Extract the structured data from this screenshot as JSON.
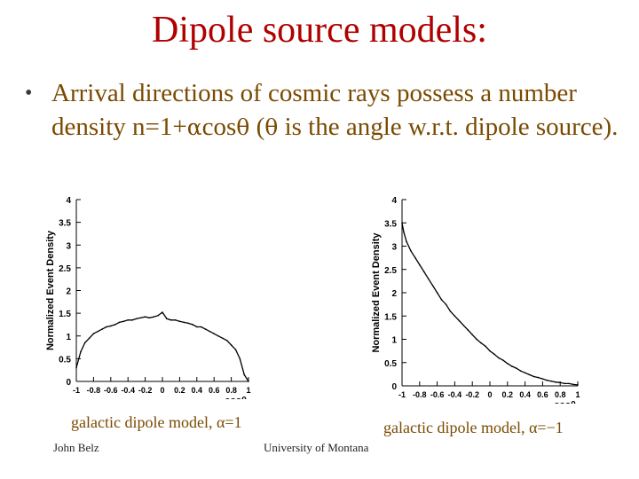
{
  "slide": {
    "title": "Dipole source models:",
    "bullet_part1": "Arrival directions of cosmic rays possess a number density n=1+",
    "alpha": "α",
    "bullet_part2": "cos",
    "theta": "θ",
    "bullet_part3": " (",
    "bullet_part4": " is the angle w.r.t. dipole source).",
    "caption_left": "galactic dipole model, α=1",
    "caption_right": "galactic dipole model, α=−1",
    "footer_left": "John Belz",
    "footer_center": "University of Montana"
  },
  "chart_data": [
    {
      "type": "line",
      "ylabel": "Normalized Event Density",
      "xlabel": "cosθ",
      "xlim": [
        -1,
        1
      ],
      "ylim": [
        0,
        4
      ],
      "x_ticks": [
        "-1",
        "-0.8",
        "-0.6",
        "-0.4",
        "-0.2",
        "0",
        "0.2",
        "0.4",
        "0.6",
        "0.8",
        "1"
      ],
      "y_ticks": [
        "0",
        "0.5",
        "1",
        "1.5",
        "2",
        "2.5",
        "3",
        "3.5",
        "4"
      ],
      "x": [
        -1.0,
        -0.95,
        -0.9,
        -0.85,
        -0.8,
        -0.75,
        -0.7,
        -0.65,
        -0.6,
        -0.55,
        -0.5,
        -0.45,
        -0.4,
        -0.35,
        -0.3,
        -0.25,
        -0.2,
        -0.15,
        -0.1,
        -0.05,
        0.0,
        0.05,
        0.1,
        0.15,
        0.2,
        0.25,
        0.3,
        0.35,
        0.4,
        0.45,
        0.5,
        0.55,
        0.6,
        0.65,
        0.7,
        0.75,
        0.8,
        0.85,
        0.9,
        0.95,
        1.0
      ],
      "y": [
        0.3,
        0.65,
        0.85,
        0.95,
        1.05,
        1.1,
        1.15,
        1.2,
        1.22,
        1.25,
        1.3,
        1.32,
        1.35,
        1.35,
        1.38,
        1.4,
        1.42,
        1.4,
        1.42,
        1.45,
        1.52,
        1.38,
        1.35,
        1.35,
        1.32,
        1.3,
        1.28,
        1.25,
        1.2,
        1.2,
        1.15,
        1.1,
        1.05,
        1.0,
        0.95,
        0.9,
        0.8,
        0.7,
        0.5,
        0.15,
        0.0
      ]
    },
    {
      "type": "line",
      "ylabel": "Normalized Event Density",
      "xlabel": "cosθ",
      "xlim": [
        -1,
        1
      ],
      "ylim": [
        0,
        4
      ],
      "x_ticks": [
        "-1",
        "-0.8",
        "-0.6",
        "-0.4",
        "-0.2",
        "0",
        "0.2",
        "0.4",
        "0.6",
        "0.8",
        "1"
      ],
      "y_ticks": [
        "0",
        "0.5",
        "1",
        "1.5",
        "2",
        "2.5",
        "3",
        "3.5",
        "4"
      ],
      "x": [
        -1.0,
        -0.98,
        -0.95,
        -0.9,
        -0.85,
        -0.8,
        -0.75,
        -0.7,
        -0.65,
        -0.6,
        -0.55,
        -0.5,
        -0.45,
        -0.4,
        -0.35,
        -0.3,
        -0.25,
        -0.2,
        -0.15,
        -0.1,
        -0.05,
        0.0,
        0.05,
        0.1,
        0.15,
        0.2,
        0.25,
        0.3,
        0.35,
        0.4,
        0.45,
        0.5,
        0.55,
        0.6,
        0.65,
        0.7,
        0.75,
        0.8,
        0.85,
        0.9,
        0.95,
        1.0
      ],
      "y": [
        3.5,
        3.3,
        3.1,
        2.9,
        2.75,
        2.6,
        2.45,
        2.3,
        2.15,
        2.0,
        1.85,
        1.75,
        1.6,
        1.5,
        1.4,
        1.3,
        1.2,
        1.1,
        1.0,
        0.92,
        0.85,
        0.75,
        0.68,
        0.6,
        0.55,
        0.48,
        0.42,
        0.38,
        0.32,
        0.28,
        0.24,
        0.2,
        0.18,
        0.15,
        0.12,
        0.1,
        0.08,
        0.07,
        0.05,
        0.05,
        0.03,
        0.02
      ]
    }
  ]
}
